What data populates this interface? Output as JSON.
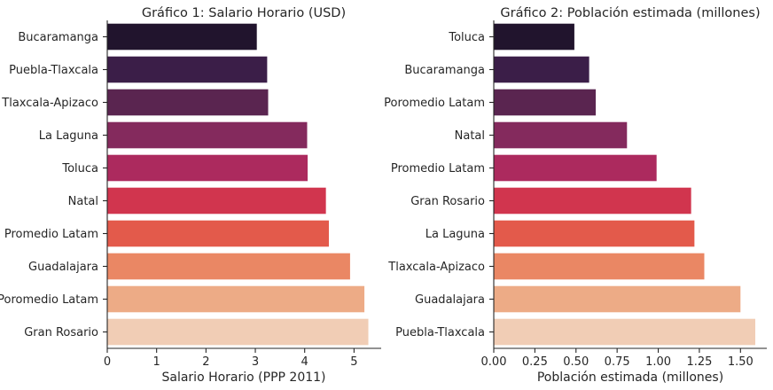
{
  "chart_data": [
    {
      "type": "bar",
      "orientation": "horizontal",
      "title": "Gráfico 1: Salario Horario (USD)",
      "xlabel": "Salario Horario (PPP 2011)",
      "ylabel": "",
      "xlim": [
        0,
        5.55
      ],
      "xticks": [
        "0",
        "1",
        "2",
        "3",
        "4",
        "5"
      ],
      "xtick_values": [
        0,
        1,
        2,
        3,
        4,
        5
      ],
      "highlight_label": "Puebla-Tlaxcala",
      "highlight_color": "#ff0000",
      "categories": [
        "Bucaramanga",
        "Puebla-Tlaxcala",
        "Tlaxcala-Apizaco",
        "La Laguna",
        "Toluca",
        "Natal",
        "Promedio Latam",
        "Guadalajara",
        "Poromedio Latam",
        "Gran Rosario"
      ],
      "values": [
        3.03,
        3.24,
        3.26,
        4.05,
        4.06,
        4.43,
        4.49,
        4.92,
        5.21,
        5.29
      ],
      "colors": [
        "#21142d",
        "#3b1e48",
        "#5a2550",
        "#842a5d",
        "#ac2a5e",
        "#d1354e",
        "#e35a4b",
        "#ea8764",
        "#edab86",
        "#f1cdb5"
      ]
    },
    {
      "type": "bar",
      "orientation": "horizontal",
      "title": "Gráfico 2: Población estimada (millones)",
      "xlabel": "Población estimada (millones)",
      "ylabel": "",
      "xlim": [
        0,
        1.66
      ],
      "xticks": [
        "0.00",
        "0.25",
        "0.50",
        "0.75",
        "1.00",
        "1.25",
        "1.50"
      ],
      "xtick_values": [
        0,
        0.25,
        0.5,
        0.75,
        1.0,
        1.25,
        1.5
      ],
      "highlight_label": "Puebla-Tlaxcala",
      "highlight_color": "#ff0000",
      "categories": [
        "Toluca",
        "Bucaramanga",
        "Poromedio Latam",
        "Natal",
        "Promedio Latam",
        "Gran Rosario",
        "La Laguna",
        "Tlaxcala-Apizaco",
        "Guadalajara",
        "Puebla-Tlaxcala"
      ],
      "values": [
        0.49,
        0.58,
        0.62,
        0.81,
        0.99,
        1.2,
        1.22,
        1.28,
        1.5,
        1.59
      ],
      "colors": [
        "#21142d",
        "#3b1e48",
        "#5a2550",
        "#842a5d",
        "#ac2a5e",
        "#d1354e",
        "#e35a4b",
        "#ea8764",
        "#edab86",
        "#f1cdb5"
      ]
    }
  ]
}
